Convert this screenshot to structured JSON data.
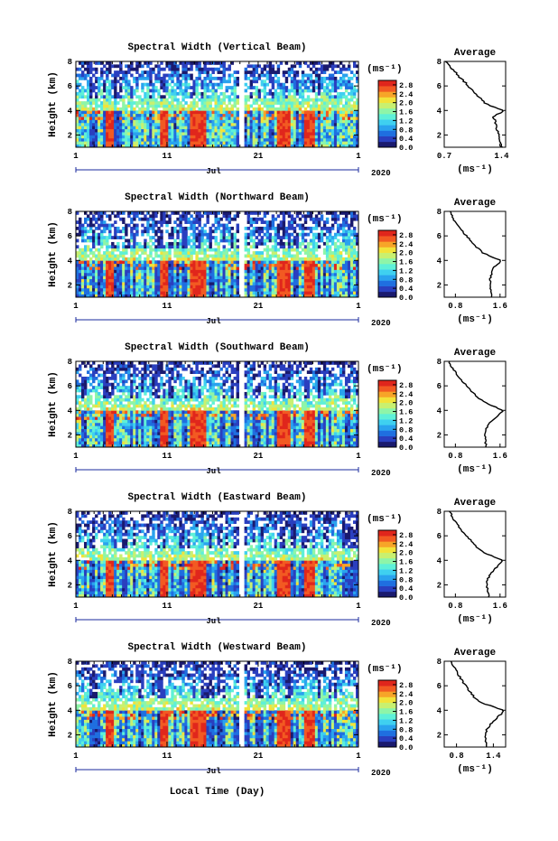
{
  "figure": {
    "xlabel": "Local Time (Day)",
    "month_label": "Jul",
    "year_label": "2020",
    "colorbar_units": "(ms⁻¹)",
    "avg_title": "Average",
    "avg_units": "(ms⁻¹)",
    "colormap": [
      "#1a1a6e",
      "#2a3fbf",
      "#1f6fe0",
      "#2aa3ee",
      "#3fd0f0",
      "#5ef0d8",
      "#8ef5a8",
      "#c8f070",
      "#f2e33a",
      "#f7a528",
      "#f25a22",
      "#e0261c"
    ]
  },
  "chart_data": [
    {
      "type": "heatmap",
      "title": "Spectral Width (Vertical Beam)",
      "ylabel": "Height (km)",
      "x_ticks": [
        "1",
        "11",
        "21",
        "1"
      ],
      "y_ticks": [
        "2",
        "4",
        "6",
        "8"
      ],
      "xlim": [
        1,
        32
      ],
      "ylim": [
        1.0,
        8.0
      ],
      "colorbar_ticks": [
        "2.8",
        "2.4",
        "2.0",
        "1.6",
        "1.2",
        "0.8",
        "0.4",
        "0.0"
      ],
      "colorbar_range": [
        0.0,
        3.0
      ],
      "profile": {
        "title": "Average",
        "xlabel": "(ms⁻¹)",
        "x_ticks": [
          "0.7",
          "1.4"
        ],
        "xlim": [
          0.7,
          1.45
        ],
        "heights": [
          1.0,
          1.5,
          2.0,
          2.5,
          3.0,
          3.5,
          3.8,
          4.0,
          4.3,
          4.6,
          5.0,
          5.5,
          6.0,
          6.5,
          7.0,
          7.5,
          8.0
        ],
        "values": [
          1.4,
          1.38,
          1.36,
          1.34,
          1.33,
          1.3,
          1.38,
          1.42,
          1.3,
          1.2,
          1.15,
          1.05,
          1.0,
          0.92,
          0.85,
          0.78,
          0.72
        ]
      }
    },
    {
      "type": "heatmap",
      "title": "Spectral Width (Northward Beam)",
      "ylabel": "Height (km)",
      "x_ticks": [
        "1",
        "11",
        "21",
        "1"
      ],
      "y_ticks": [
        "2",
        "4",
        "6",
        "8"
      ],
      "xlim": [
        1,
        32
      ],
      "ylim": [
        1.0,
        8.0
      ],
      "colorbar_ticks": [
        "2.8",
        "2.4",
        "2.0",
        "1.6",
        "1.2",
        "0.8",
        "0.4",
        "0.0"
      ],
      "colorbar_range": [
        0.0,
        3.0
      ],
      "profile": {
        "title": "Average",
        "xlabel": "(ms⁻¹)",
        "x_ticks": [
          "0.8",
          "1.6"
        ],
        "xlim": [
          0.6,
          1.7
        ],
        "heights": [
          1.0,
          1.5,
          2.0,
          2.5,
          3.0,
          3.5,
          3.8,
          4.0,
          4.3,
          4.6,
          5.0,
          5.5,
          6.0,
          6.5,
          7.0,
          7.5,
          8.0
        ],
        "values": [
          1.45,
          1.44,
          1.43,
          1.42,
          1.45,
          1.5,
          1.6,
          1.62,
          1.45,
          1.3,
          1.2,
          1.1,
          1.0,
          0.9,
          0.82,
          0.75,
          0.7
        ]
      }
    },
    {
      "type": "heatmap",
      "title": "Spectral Width (Southward Beam)",
      "ylabel": "Height (km)",
      "x_ticks": [
        "1",
        "11",
        "21",
        "1"
      ],
      "y_ticks": [
        "2",
        "4",
        "6",
        "8"
      ],
      "xlim": [
        1,
        32
      ],
      "ylim": [
        1.0,
        8.0
      ],
      "colorbar_ticks": [
        "2.8",
        "2.4",
        "2.0",
        "1.6",
        "1.2",
        "0.8",
        "0.4",
        "0.0"
      ],
      "colorbar_range": [
        0.0,
        3.0
      ],
      "profile": {
        "title": "Average",
        "xlabel": "(ms⁻¹)",
        "x_ticks": [
          "0.8",
          "1.6"
        ],
        "xlim": [
          0.6,
          1.7
        ],
        "heights": [
          1.0,
          1.5,
          2.0,
          2.5,
          3.0,
          3.5,
          3.8,
          4.0,
          4.3,
          4.6,
          5.0,
          5.5,
          6.0,
          6.5,
          7.0,
          7.5,
          8.0
        ],
        "values": [
          1.35,
          1.34,
          1.34,
          1.35,
          1.42,
          1.55,
          1.62,
          1.65,
          1.5,
          1.35,
          1.22,
          1.1,
          1.0,
          0.9,
          0.82,
          0.74,
          0.68
        ]
      }
    },
    {
      "type": "heatmap",
      "title": "Spectral Width (Eastward Beam)",
      "ylabel": "Height (km)",
      "x_ticks": [
        "1",
        "11",
        "21",
        "1"
      ],
      "y_ticks": [
        "2",
        "4",
        "6",
        "8"
      ],
      "xlim": [
        1,
        32
      ],
      "ylim": [
        1.0,
        8.0
      ],
      "colorbar_ticks": [
        "2.8",
        "2.4",
        "2.0",
        "1.6",
        "1.2",
        "0.8",
        "0.4",
        "0.0"
      ],
      "colorbar_range": [
        0.0,
        3.0
      ],
      "profile": {
        "title": "Average",
        "xlabel": "(ms⁻¹)",
        "x_ticks": [
          "0.8",
          "1.6"
        ],
        "xlim": [
          0.6,
          1.7
        ],
        "heights": [
          1.0,
          1.5,
          2.0,
          2.5,
          3.0,
          3.5,
          3.8,
          4.0,
          4.3,
          4.6,
          5.0,
          5.5,
          6.0,
          6.5,
          7.0,
          7.5,
          8.0
        ],
        "values": [
          1.4,
          1.38,
          1.36,
          1.38,
          1.45,
          1.55,
          1.62,
          1.65,
          1.48,
          1.32,
          1.2,
          1.1,
          1.0,
          0.9,
          0.82,
          0.75,
          0.7
        ]
      }
    },
    {
      "type": "heatmap",
      "title": "Spectral Width (Westward Beam)",
      "ylabel": "Height (km)",
      "x_ticks": [
        "1",
        "11",
        "21",
        "1"
      ],
      "y_ticks": [
        "2",
        "4",
        "6",
        "8"
      ],
      "xlim": [
        1,
        32
      ],
      "ylim": [
        1.0,
        8.0
      ],
      "colorbar_ticks": [
        "2.8",
        "2.4",
        "2.0",
        "1.6",
        "1.2",
        "0.8",
        "0.4",
        "0.0"
      ],
      "colorbar_range": [
        0.0,
        3.0
      ],
      "profile": {
        "title": "Average",
        "xlabel": "(ms⁻¹)",
        "x_ticks": [
          "0.8",
          "1.4"
        ],
        "xlim": [
          0.6,
          1.6
        ],
        "heights": [
          1.0,
          1.5,
          2.0,
          2.5,
          3.0,
          3.5,
          3.8,
          4.0,
          4.3,
          4.6,
          5.0,
          5.5,
          6.0,
          6.5,
          7.0,
          7.5,
          8.0
        ],
        "values": [
          1.3,
          1.28,
          1.27,
          1.3,
          1.38,
          1.48,
          1.55,
          1.56,
          1.4,
          1.2,
          1.1,
          1.02,
          0.95,
          0.88,
          0.82,
          0.76,
          0.72
        ]
      }
    }
  ]
}
